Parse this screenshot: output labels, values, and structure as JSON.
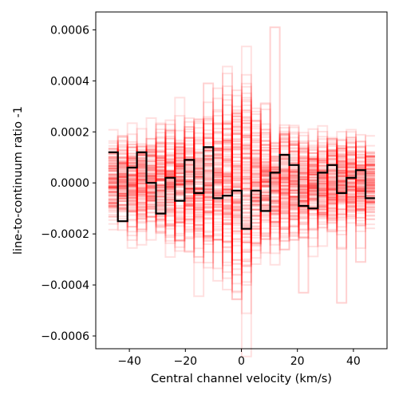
{
  "chart_data": {
    "type": "line",
    "step": true,
    "xlabel": "Central channel velocity (km/s)",
    "ylabel": "line-to-continuum ratio -1",
    "xlim": [
      -52,
      52
    ],
    "ylim": [
      -0.00065,
      0.00067
    ],
    "xticks": [
      -40,
      -20,
      0,
      20,
      40
    ],
    "xtick_labels": [
      "−40",
      "−20",
      "0",
      "20",
      "40"
    ],
    "yticks": [
      -0.0006,
      -0.0004,
      -0.0002,
      0.0,
      0.0002,
      0.0004,
      0.0006
    ],
    "ytick_labels": [
      "−0.0006",
      "−0.0004",
      "−0.0002",
      "0.0000",
      "0.0002",
      "0.0004",
      "0.0006"
    ],
    "grid": false,
    "channel_edges_x": [
      -47.5,
      -44.1,
      -40.7,
      -37.3,
      -33.9,
      -30.5,
      -27.1,
      -23.7,
      -20.3,
      -16.9,
      -13.5,
      -10.1,
      -6.7,
      -3.3,
      0.1,
      3.5,
      6.9,
      10.3,
      13.7,
      17.1,
      20.5,
      23.9,
      27.3,
      30.7,
      34.1,
      37.5,
      40.9,
      44.3,
      47.7
    ],
    "series": [
      {
        "color": "#000000",
        "values": [
          0.00012,
          -0.00015,
          6e-05,
          0.00012,
          0.0,
          -0.00012,
          2e-05,
          -7e-05,
          9e-05,
          -4e-05,
          0.00014,
          -6e-05,
          -5e-05,
          -3e-05,
          -0.00018,
          -3e-05,
          -0.00011,
          4e-05,
          0.00011,
          7e-05,
          -9e-05,
          -0.0001,
          4e-05,
          7e-05,
          -4e-05,
          2e-05,
          5e-05,
          -6e-05
        ]
      }
    ],
    "background_draws": {
      "color": "#ff0000",
      "description_count": 150,
      "channel_sigma": [
        9e-05,
        9e-05,
        0.0001,
        0.0001,
        0.00011,
        0.00011,
        0.00012,
        0.00012,
        0.00012,
        0.00013,
        0.00013,
        0.00015,
        0.00017,
        0.00021,
        0.00023,
        0.00015,
        0.00013,
        0.00012,
        0.00012,
        0.00011,
        0.00011,
        0.0001,
        0.0001,
        0.0001,
        9e-05,
        9e-05,
        8e-05,
        8e-05
      ],
      "outliers": [
        {
          "channel": 17,
          "value": 0.00061
        },
        {
          "channel": 10,
          "value": 0.00039
        },
        {
          "channel": 26,
          "value": -0.00031
        },
        {
          "channel": 24,
          "value": -0.00047
        },
        {
          "channel": 20,
          "value": -0.00043
        }
      ]
    }
  }
}
